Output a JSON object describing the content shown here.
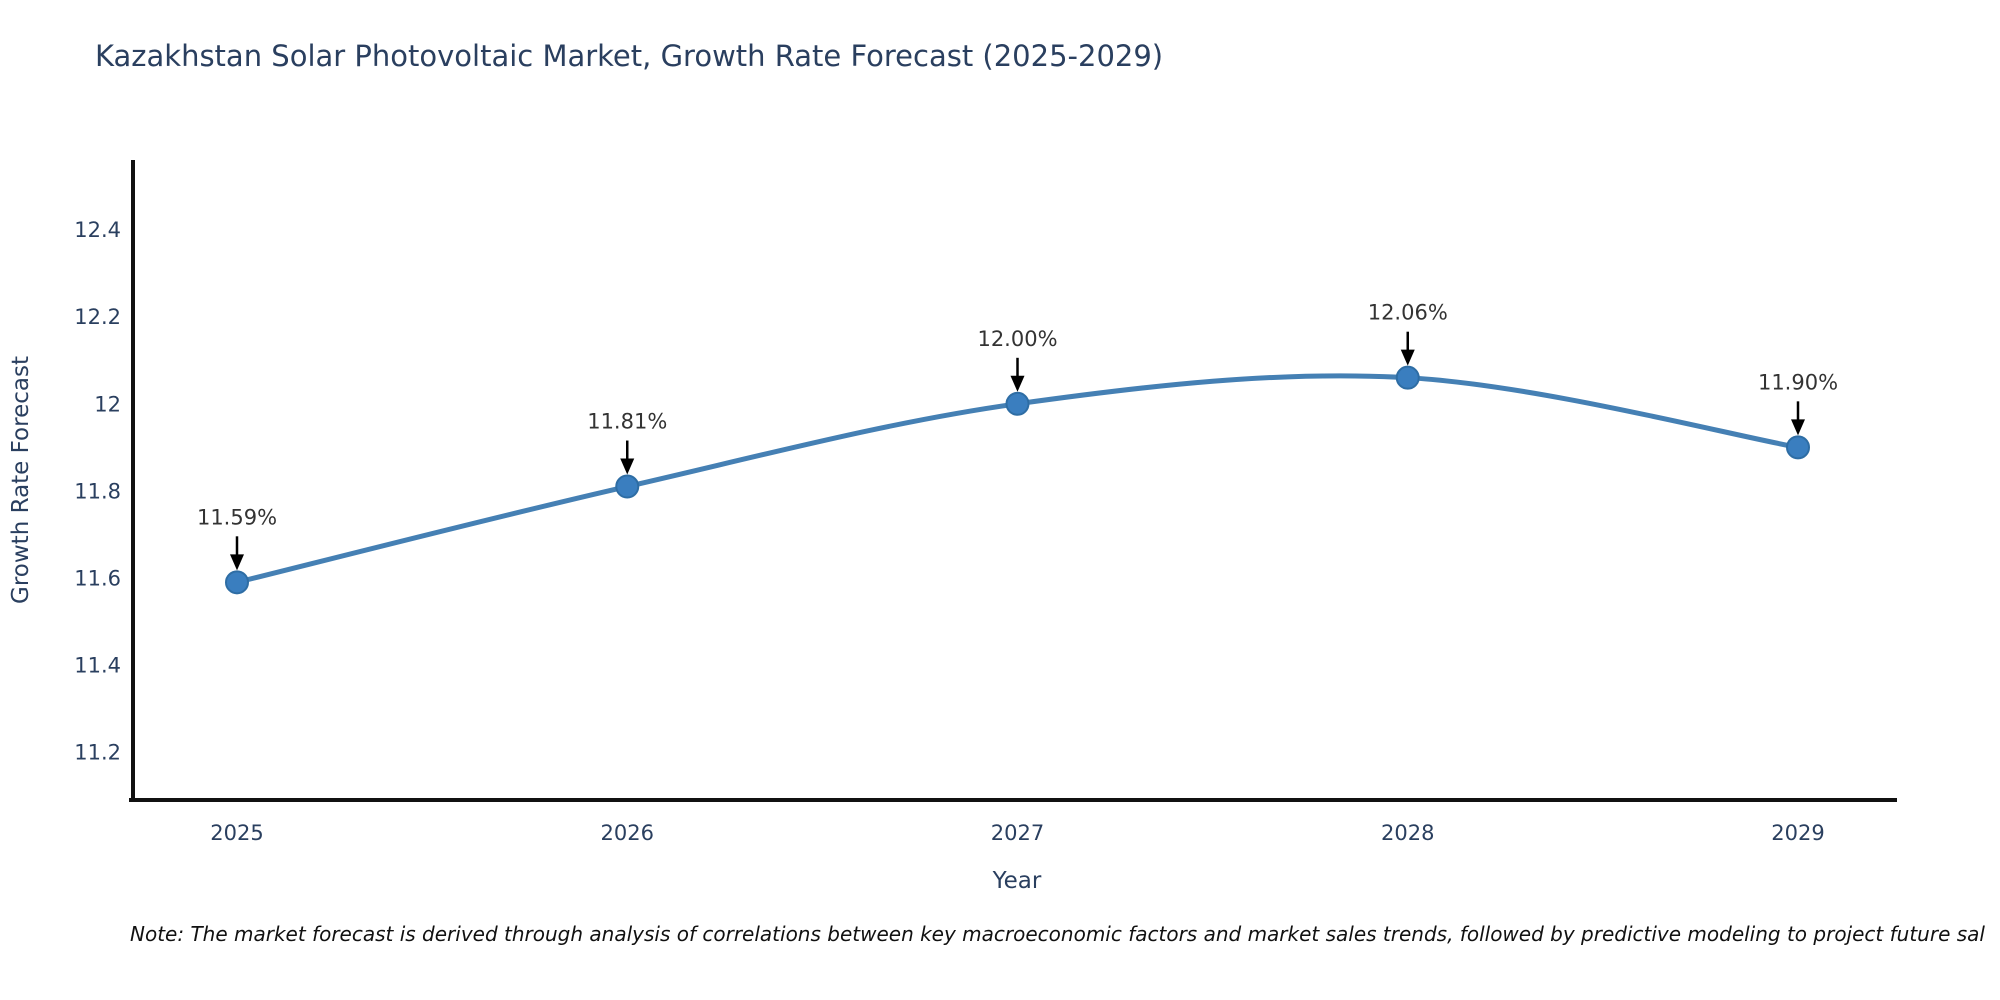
{
  "figure": {
    "note": "Note: The market forecast is derived through analysis of correlations between key macroeconomic factors and market sales trends, followed by predictive modeling to project future sal"
  },
  "chart_data": {
    "type": "line",
    "title": "Kazakhstan Solar Photovoltaic Market, Growth Rate Forecast (2025-2029)",
    "xlabel": "Year",
    "ylabel": "Growth Rate Forecast",
    "categories": [
      "2025",
      "2026",
      "2027",
      "2028",
      "2029"
    ],
    "series": [
      {
        "name": "Growth Rate Forecast",
        "values": [
          11.59,
          11.81,
          12.0,
          12.06,
          11.9
        ],
        "point_labels": [
          "11.59%",
          "11.81%",
          "12.00%",
          "12.06%",
          "11.90%"
        ]
      }
    ],
    "yticks": [
      11.2,
      11.4,
      11.6,
      11.8,
      12,
      12.2,
      12.4
    ],
    "ytick_labels": [
      "11.2",
      "11.4",
      "11.6",
      "11.8",
      "12",
      "12.2",
      "12.4"
    ],
    "ylim": [
      11.09,
      12.56
    ],
    "grid": false,
    "legend": "none",
    "line_shape": "spline",
    "annotations": "arrow-down-to-point",
    "colors": {
      "line": "#4580b4",
      "marker": "#3a7ebf",
      "marker_edge": "#2e6da4",
      "annotation_arrow": "#000000",
      "axis": "#111111",
      "tick_text": "#2a3f5f",
      "title_text": "#2a3f5f",
      "note_text": "#111111",
      "background": "#ffffff"
    }
  }
}
